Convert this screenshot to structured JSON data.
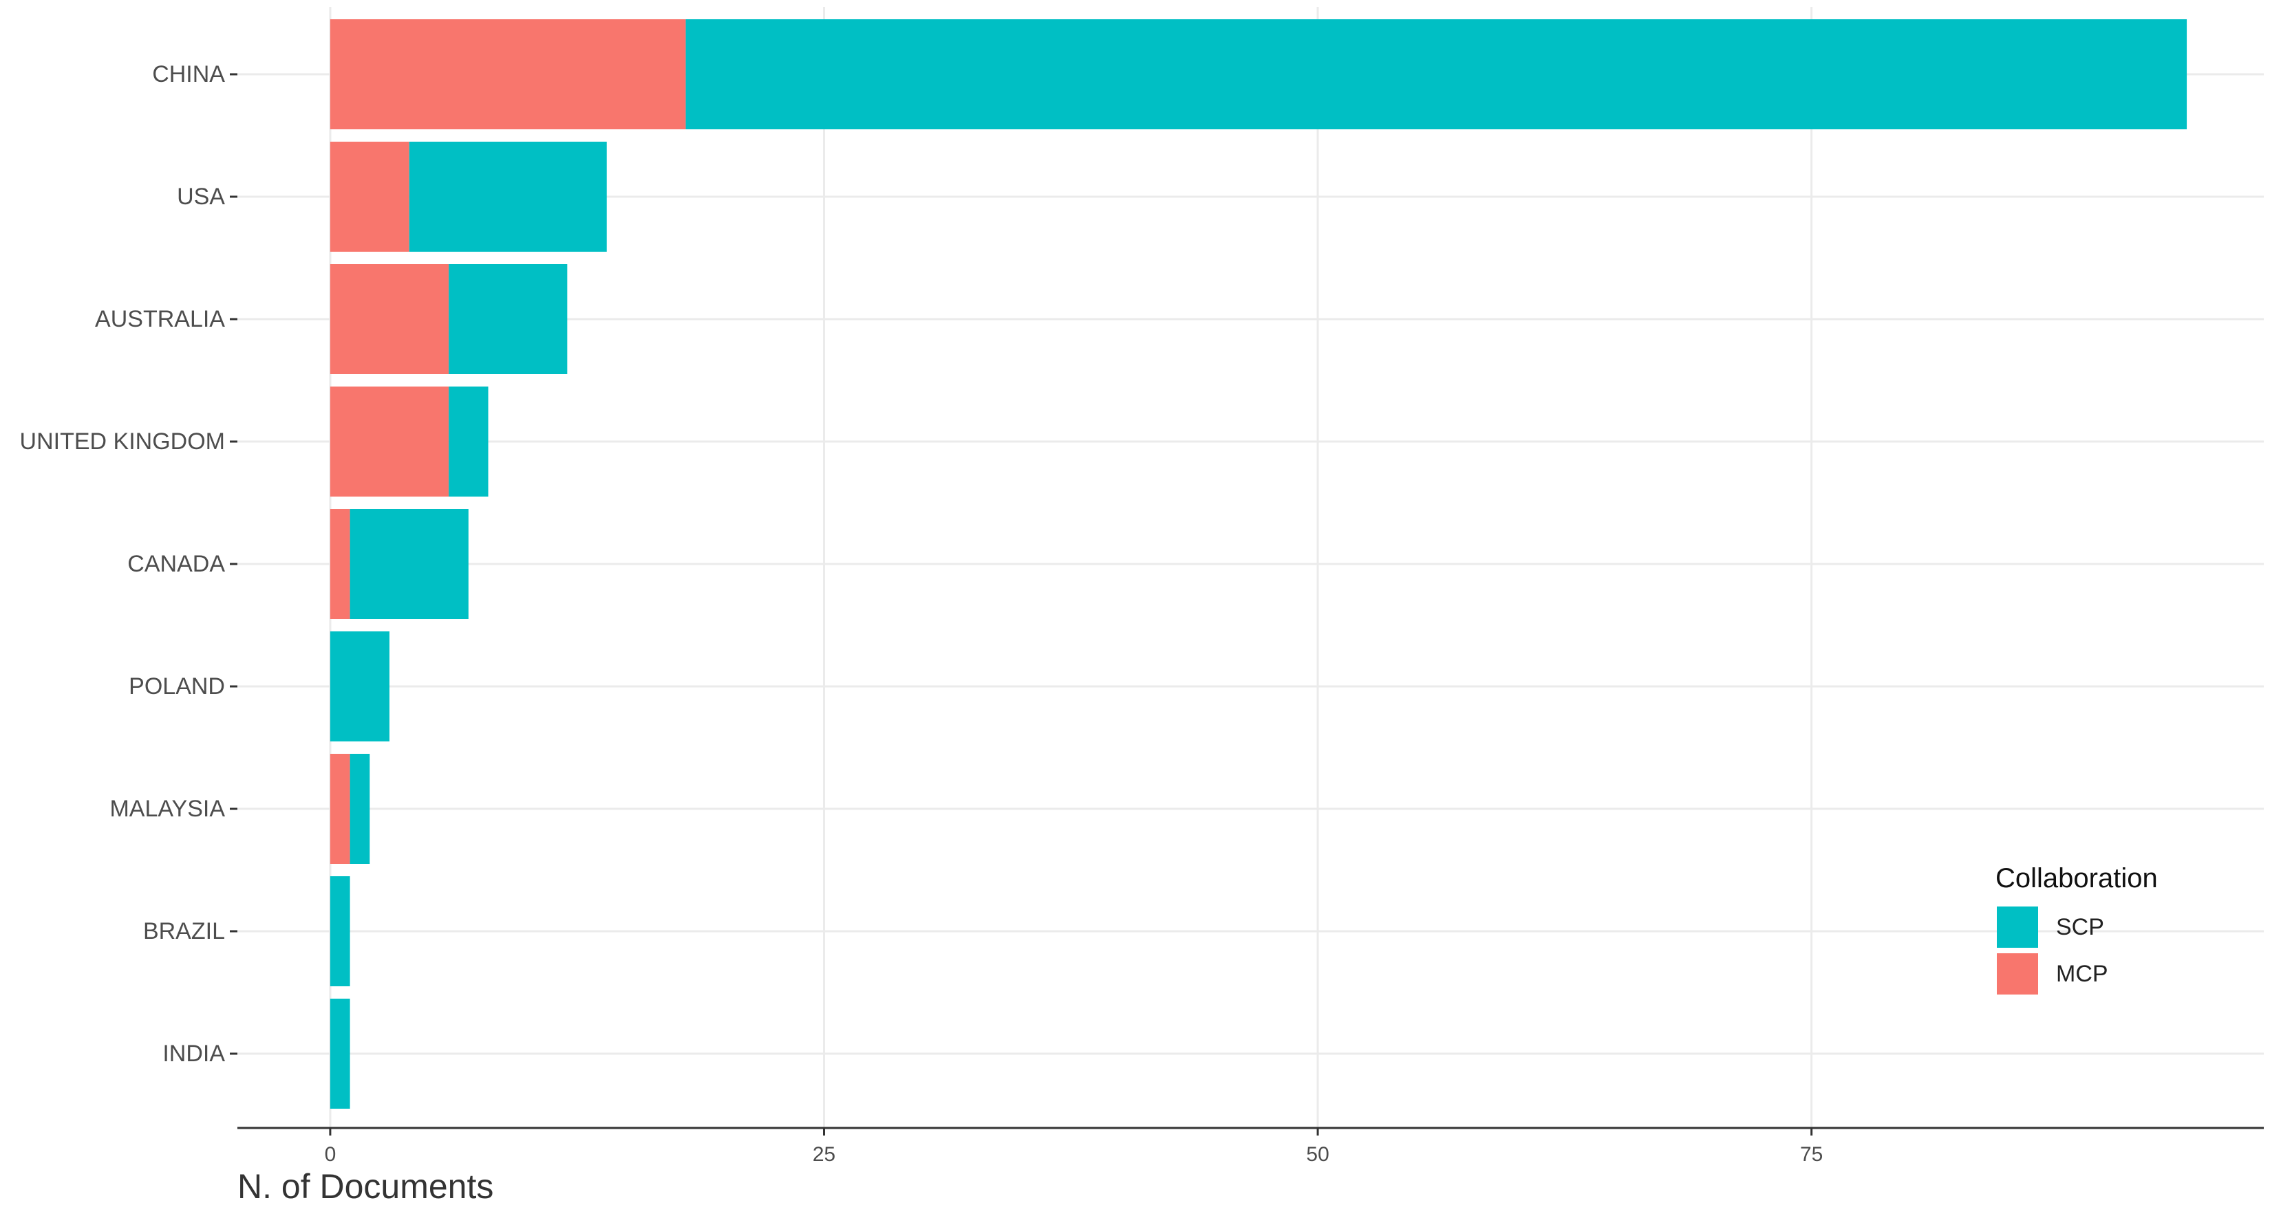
{
  "chart_data": {
    "type": "bar",
    "orientation": "horizontal",
    "stacked": true,
    "categories": [
      "CHINA",
      "USA",
      "AUSTRALIA",
      "UNITED KINGDOM",
      "CANADA",
      "POLAND",
      "MALAYSIA",
      "BRAZIL",
      "INDIA"
    ],
    "series": [
      {
        "name": "MCP",
        "values": [
          18,
          4,
          6,
          6,
          1,
          0,
          1,
          0,
          0
        ]
      },
      {
        "name": "SCP",
        "values": [
          76,
          10,
          6,
          2,
          6,
          3,
          1,
          1,
          1
        ]
      }
    ],
    "xlabel": "N. of Documents",
    "ylabel": "",
    "title": "",
    "xlim": [
      -4.7,
      97.9
    ],
    "xticks": [
      0,
      25,
      50,
      75
    ],
    "grid": true,
    "legend": {
      "title": "Collaboration",
      "position": "right",
      "entries": [
        "SCP",
        "MCP"
      ]
    },
    "colors": {
      "SCP": "#00BFC4",
      "MCP": "#F8766D",
      "grid": "#ebebeb",
      "axis": "#333333"
    }
  }
}
